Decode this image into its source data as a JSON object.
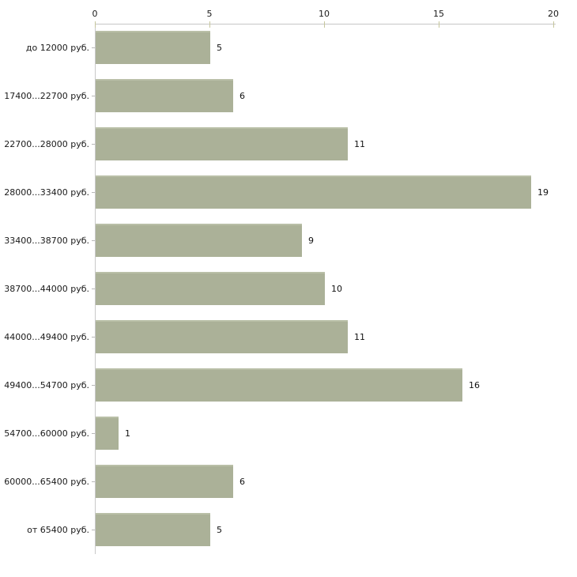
{
  "chart_data": {
    "type": "bar",
    "orientation": "horizontal",
    "title": "",
    "xlabel": "",
    "ylabel": "",
    "categories": [
      "до 12000 руб.",
      "17400...22700 руб.",
      "22700...28000 руб.",
      "28000...33400 руб.",
      "33400...38700 руб.",
      "38700...44000 руб.",
      "44000...49400 руб.",
      "49400...54700 руб.",
      "54700...60000 руб.",
      "60000...65400 руб.",
      "от 65400 руб."
    ],
    "values": [
      5,
      6,
      11,
      19,
      9,
      10,
      11,
      16,
      1,
      6,
      5
    ],
    "value_labels": [
      "5",
      "6",
      "11",
      "19",
      "9",
      "10",
      "11",
      "16",
      "1",
      "6",
      "5"
    ],
    "x_ticks": [
      "0",
      "5",
      "10",
      "15",
      "20"
    ],
    "xlim": [
      0,
      20
    ],
    "grid": false,
    "legend": false,
    "axis_position": "top",
    "colors": {
      "bar_fill": "#abb198",
      "bar_top_highlight": "#b9bfa7",
      "axis_line": "#c6c6c6",
      "x_tick": "#c6c69c",
      "category_tick": "#b8b8b8",
      "text": "#1a1a1a",
      "background": "#ffffff"
    }
  }
}
